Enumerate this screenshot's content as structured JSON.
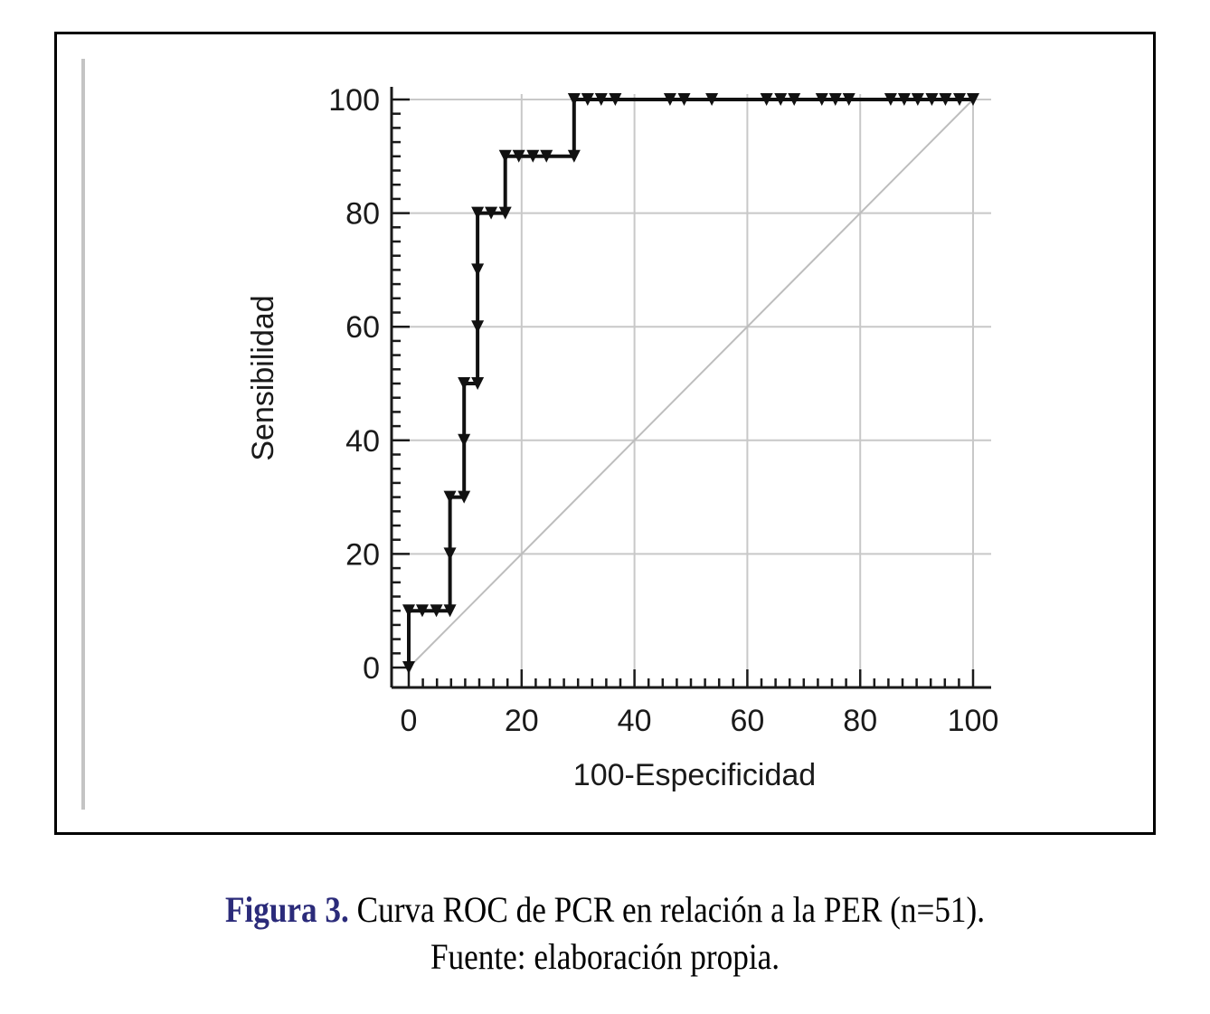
{
  "colors": {
    "curve": "#111111",
    "grid": "#c8c8c8",
    "diagonal": "#bdbdbd",
    "axis": "#1a1a1a",
    "caption_label": "#2b2b7a",
    "frame": "#000000"
  },
  "caption": {
    "label": "Figura 3.",
    "line1": " Curva ROC de PCR en relación a la PER (n=51).",
    "line2": "Fuente: elaboración propia."
  },
  "chart_data": {
    "type": "line",
    "xlabel": "100-Especificidad",
    "ylabel": "Sensibilidad",
    "xlim": [
      0,
      100
    ],
    "ylim": [
      0,
      100
    ],
    "grid": true,
    "legend": "none",
    "x_ticks": [
      "0",
      "20",
      "40",
      "60",
      "80",
      "100"
    ],
    "y_ticks": [
      "0",
      "20",
      "40",
      "60",
      "80",
      "100"
    ],
    "x_tick_values": [
      0,
      20,
      40,
      60,
      80,
      100
    ],
    "y_tick_values": [
      0,
      20,
      40,
      60,
      80,
      100
    ],
    "minor_tick_step": 2.5,
    "reference_line": [
      [
        0,
        0
      ],
      [
        100,
        100
      ]
    ],
    "curve": {
      "style": "step",
      "x": [
        0,
        0,
        7.3,
        7.3,
        9.8,
        9.8,
        12.2,
        12.2,
        17.1,
        17.1,
        29.3,
        29.3,
        100
      ],
      "y": [
        0,
        10,
        10,
        30,
        30,
        50,
        50,
        80,
        80,
        90,
        90,
        100,
        100
      ]
    },
    "markers": {
      "shape": "triangle-down",
      "x": [
        0,
        0,
        2.4,
        4.9,
        7.3,
        7.3,
        7.3,
        9.8,
        9.8,
        9.8,
        12.2,
        12.2,
        12.2,
        12.2,
        14.6,
        17.1,
        17.1,
        19.5,
        22.0,
        24.4,
        29.3,
        29.3,
        31.7,
        34.1,
        36.6,
        46.3,
        48.8,
        53.7,
        63.4,
        65.9,
        68.3,
        73.2,
        75.6,
        78.0,
        85.4,
        87.8,
        90.2,
        92.7,
        95.1,
        97.6,
        100
      ],
      "y": [
        0,
        10,
        10,
        10,
        10,
        20,
        30,
        30,
        40,
        50,
        50,
        60,
        70,
        80,
        80,
        80,
        90,
        90,
        90,
        90,
        90,
        100,
        100,
        100,
        100,
        100,
        100,
        100,
        100,
        100,
        100,
        100,
        100,
        100,
        100,
        100,
        100,
        100,
        100,
        100,
        100
      ]
    }
  }
}
